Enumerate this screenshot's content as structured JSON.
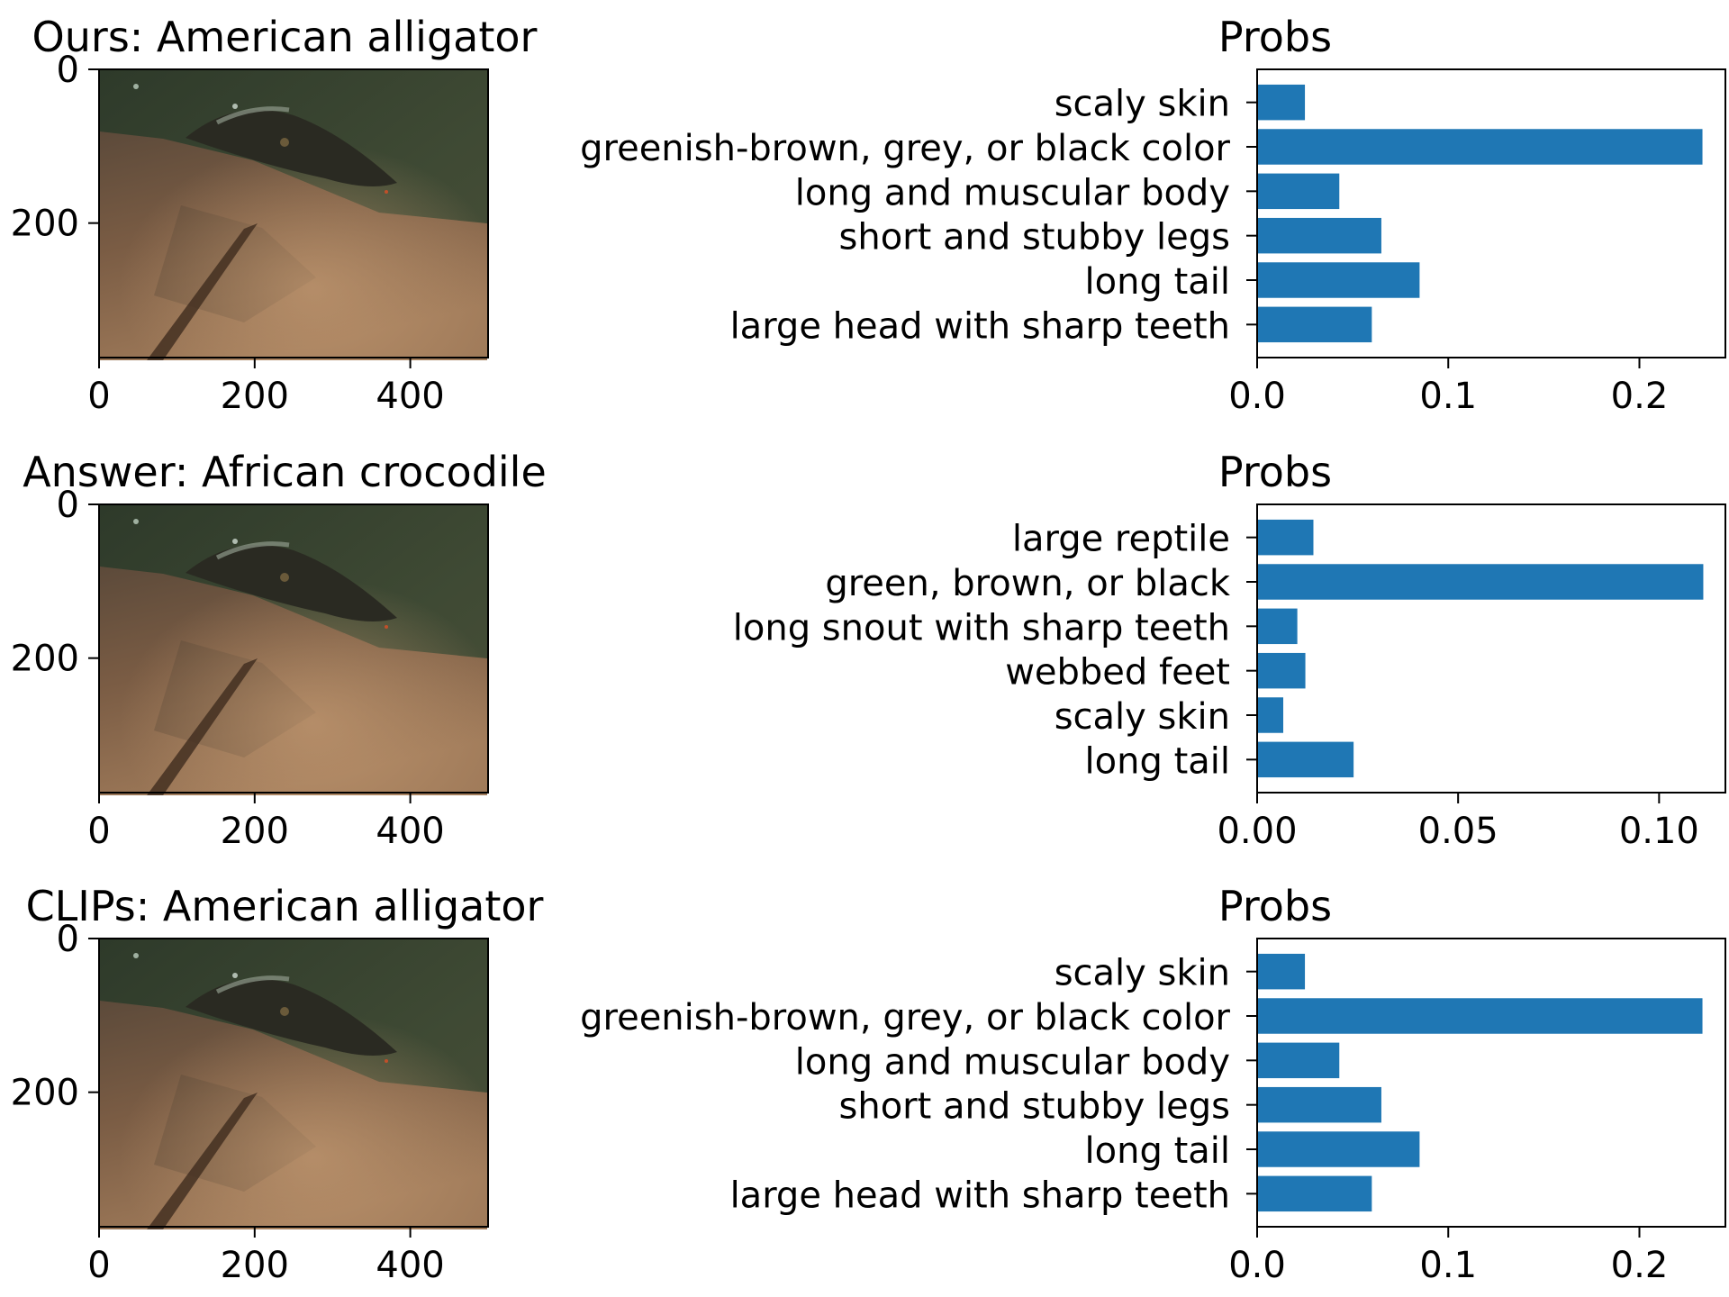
{
  "colors": {
    "bar": "#1f77b4",
    "axis": "#000000",
    "background": "#ffffff"
  },
  "chart_data": [
    {
      "type": "image",
      "title": "Ours: American alligator",
      "xticks": [
        0,
        200,
        400
      ],
      "yticks": [
        0,
        200
      ],
      "xlim": [
        0,
        500
      ],
      "ylim": [
        375,
        0
      ]
    },
    {
      "type": "bar",
      "orientation": "horizontal",
      "title": "Probs",
      "categories": [
        "scaly skin",
        "greenish-brown, grey, or black color",
        "long and muscular body",
        "short and stubby legs",
        "long tail",
        "large head with sharp teeth"
      ],
      "values": [
        0.025,
        0.233,
        0.043,
        0.065,
        0.085,
        0.06
      ],
      "xlim": [
        0,
        0.245
      ],
      "xticks": [
        0.0,
        0.1,
        0.2
      ],
      "xtick_labels": [
        "0.0",
        "0.1",
        "0.2"
      ]
    },
    {
      "type": "image",
      "title": "Answer: African crocodile",
      "xticks": [
        0,
        200,
        400
      ],
      "yticks": [
        0,
        200
      ],
      "xlim": [
        0,
        500
      ],
      "ylim": [
        375,
        0
      ]
    },
    {
      "type": "bar",
      "orientation": "horizontal",
      "title": "Probs",
      "categories": [
        "large reptile",
        "green, brown, or black",
        "long snout with sharp teeth",
        "webbed feet",
        "scaly skin",
        "long tail"
      ],
      "values": [
        0.014,
        0.111,
        0.01,
        0.012,
        0.0065,
        0.024
      ],
      "xlim": [
        0,
        0.1165
      ],
      "xticks": [
        0.0,
        0.05,
        0.1
      ],
      "xtick_labels": [
        "0.00",
        "0.05",
        "0.10"
      ]
    },
    {
      "type": "image",
      "title": "CLIPs: American alligator",
      "xticks": [
        0,
        200,
        400
      ],
      "yticks": [
        0,
        200
      ],
      "xlim": [
        0,
        500
      ],
      "ylim": [
        375,
        0
      ]
    },
    {
      "type": "bar",
      "orientation": "horizontal",
      "title": "Probs",
      "categories": [
        "scaly skin",
        "greenish-brown, grey, or black color",
        "long and muscular body",
        "short and stubby legs",
        "long tail",
        "large head with sharp teeth"
      ],
      "values": [
        0.025,
        0.233,
        0.043,
        0.065,
        0.085,
        0.06
      ],
      "xlim": [
        0,
        0.245
      ],
      "xticks": [
        0.0,
        0.1,
        0.2
      ],
      "xtick_labels": [
        "0.0",
        "0.1",
        "0.2"
      ]
    }
  ]
}
